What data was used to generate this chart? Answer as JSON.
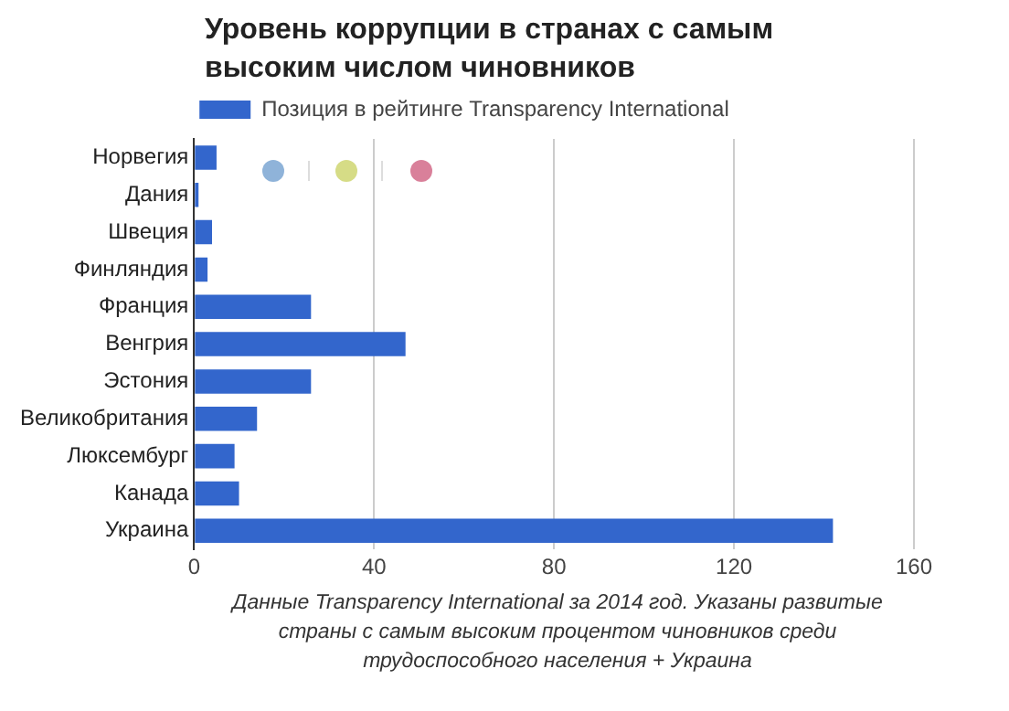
{
  "chart_data": {
    "type": "bar",
    "orientation": "horizontal",
    "title": "Уровень коррупции в странах с самым высоким числом чиновников",
    "categories": [
      "Норвегия",
      "Дания",
      "Швеция",
      "Финляндия",
      "Франция",
      "Венгрия",
      "Эстония",
      "Великобритания",
      "Люксембург",
      "Канада",
      "Украина"
    ],
    "series": [
      {
        "name": "Позиция в рейтинге Transparency International",
        "color": "#3366cc",
        "values": [
          5,
          1,
          4,
          3,
          26,
          47,
          26,
          14,
          9,
          10,
          142
        ]
      }
    ],
    "xlim": [
      0,
      160
    ],
    "xticks": [
      0,
      40,
      80,
      120,
      160
    ],
    "grid": "x",
    "legend": "top",
    "annotations": [
      "Данные Transparency International за 2014 год. Указаны развитые страны с самым высоким процентом чиновников среди трудоспособного населения + Украина"
    ]
  }
}
